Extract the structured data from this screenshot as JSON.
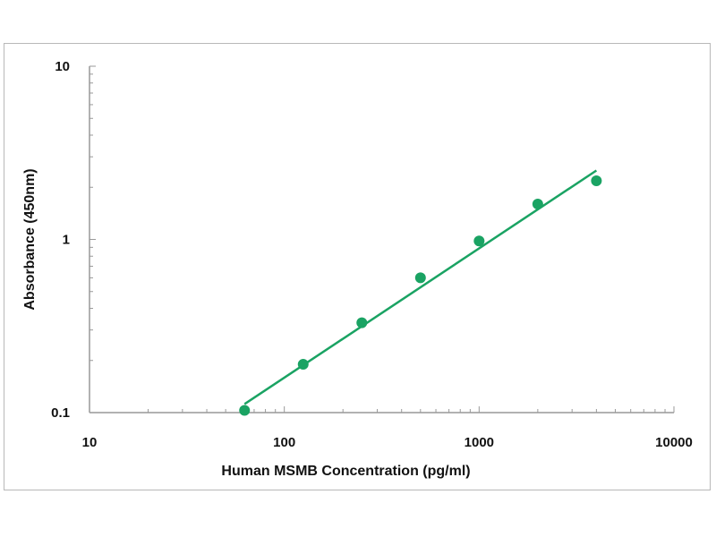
{
  "chart_data": {
    "type": "scatter",
    "title": "",
    "xlabel": "Human MSMB Concentration (pg/ml)",
    "ylabel": "Absorbance (450nm)",
    "x_scale": "log",
    "y_scale": "log",
    "xlim": [
      10,
      10000
    ],
    "ylim": [
      0.1,
      10
    ],
    "x_ticks": [
      10,
      100,
      1000,
      10000
    ],
    "x_tick_labels": [
      "10",
      "100",
      "1000",
      "10000"
    ],
    "y_ticks": [
      0.1,
      1,
      10
    ],
    "y_tick_labels": [
      "0.1",
      "1",
      "10"
    ],
    "grid": false,
    "legend": "none",
    "series": [
      {
        "color": "#1aa363",
        "points": [
          {
            "x": 62.5,
            "y": 0.103
          },
          {
            "x": 125,
            "y": 0.19
          },
          {
            "x": 250,
            "y": 0.33
          },
          {
            "x": 500,
            "y": 0.6
          },
          {
            "x": 1000,
            "y": 0.98
          },
          {
            "x": 2000,
            "y": 1.6
          },
          {
            "x": 4000,
            "y": 2.18
          }
        ],
        "fit_line": {
          "x": [
            62.5,
            4000
          ],
          "y": [
            0.112,
            2.5
          ]
        }
      }
    ]
  }
}
